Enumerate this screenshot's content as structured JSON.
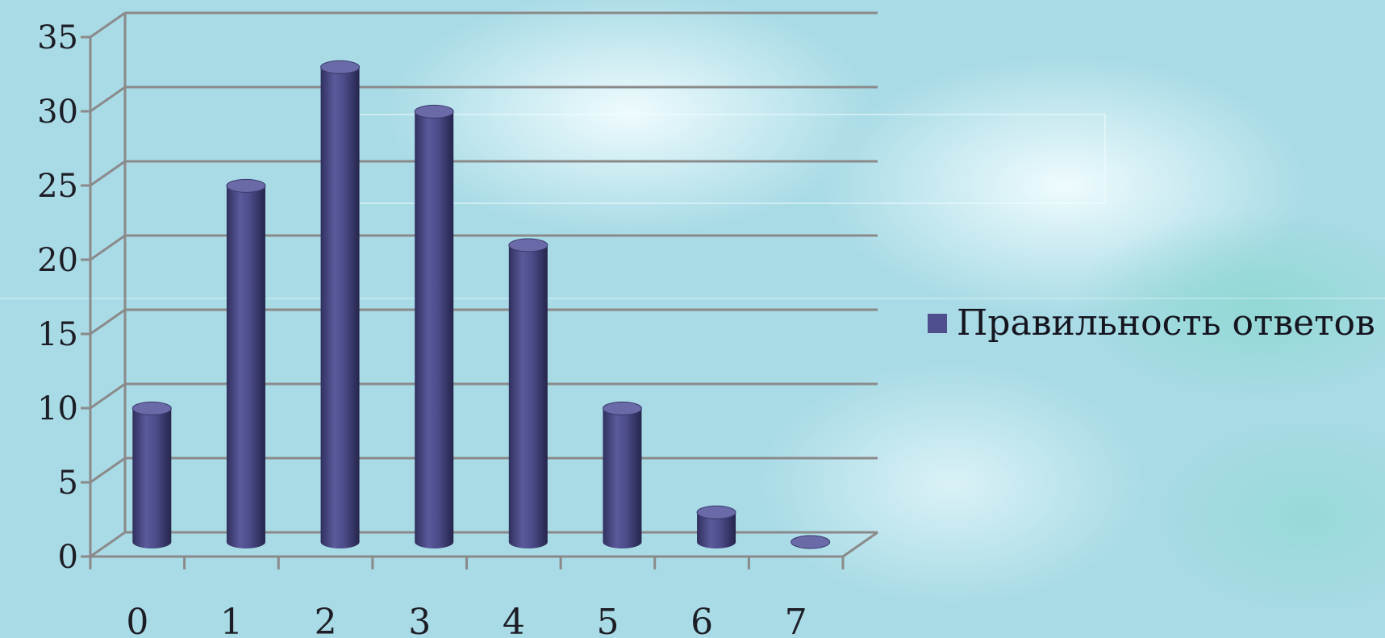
{
  "chart_data": {
    "type": "bar",
    "style": "3d-cylinder",
    "categories": [
      "0",
      "1",
      "2",
      "3",
      "4",
      "5",
      "6",
      "7"
    ],
    "series": [
      {
        "name": "Правильность ответов",
        "values": [
          9,
          24,
          32,
          29,
          20,
          9,
          2,
          0
        ],
        "color": "#4f4f8e"
      }
    ],
    "y_ticks": [
      "0",
      "5",
      "10",
      "15",
      "20",
      "25",
      "30",
      "35"
    ],
    "ylim": [
      0,
      35
    ],
    "grid": true,
    "legend_position": "right",
    "title": "",
    "xlabel": "",
    "ylabel": ""
  },
  "colors": {
    "background": "#a9dbe6",
    "grid": "#8a8a8a",
    "bar": "#4f4f8e"
  }
}
